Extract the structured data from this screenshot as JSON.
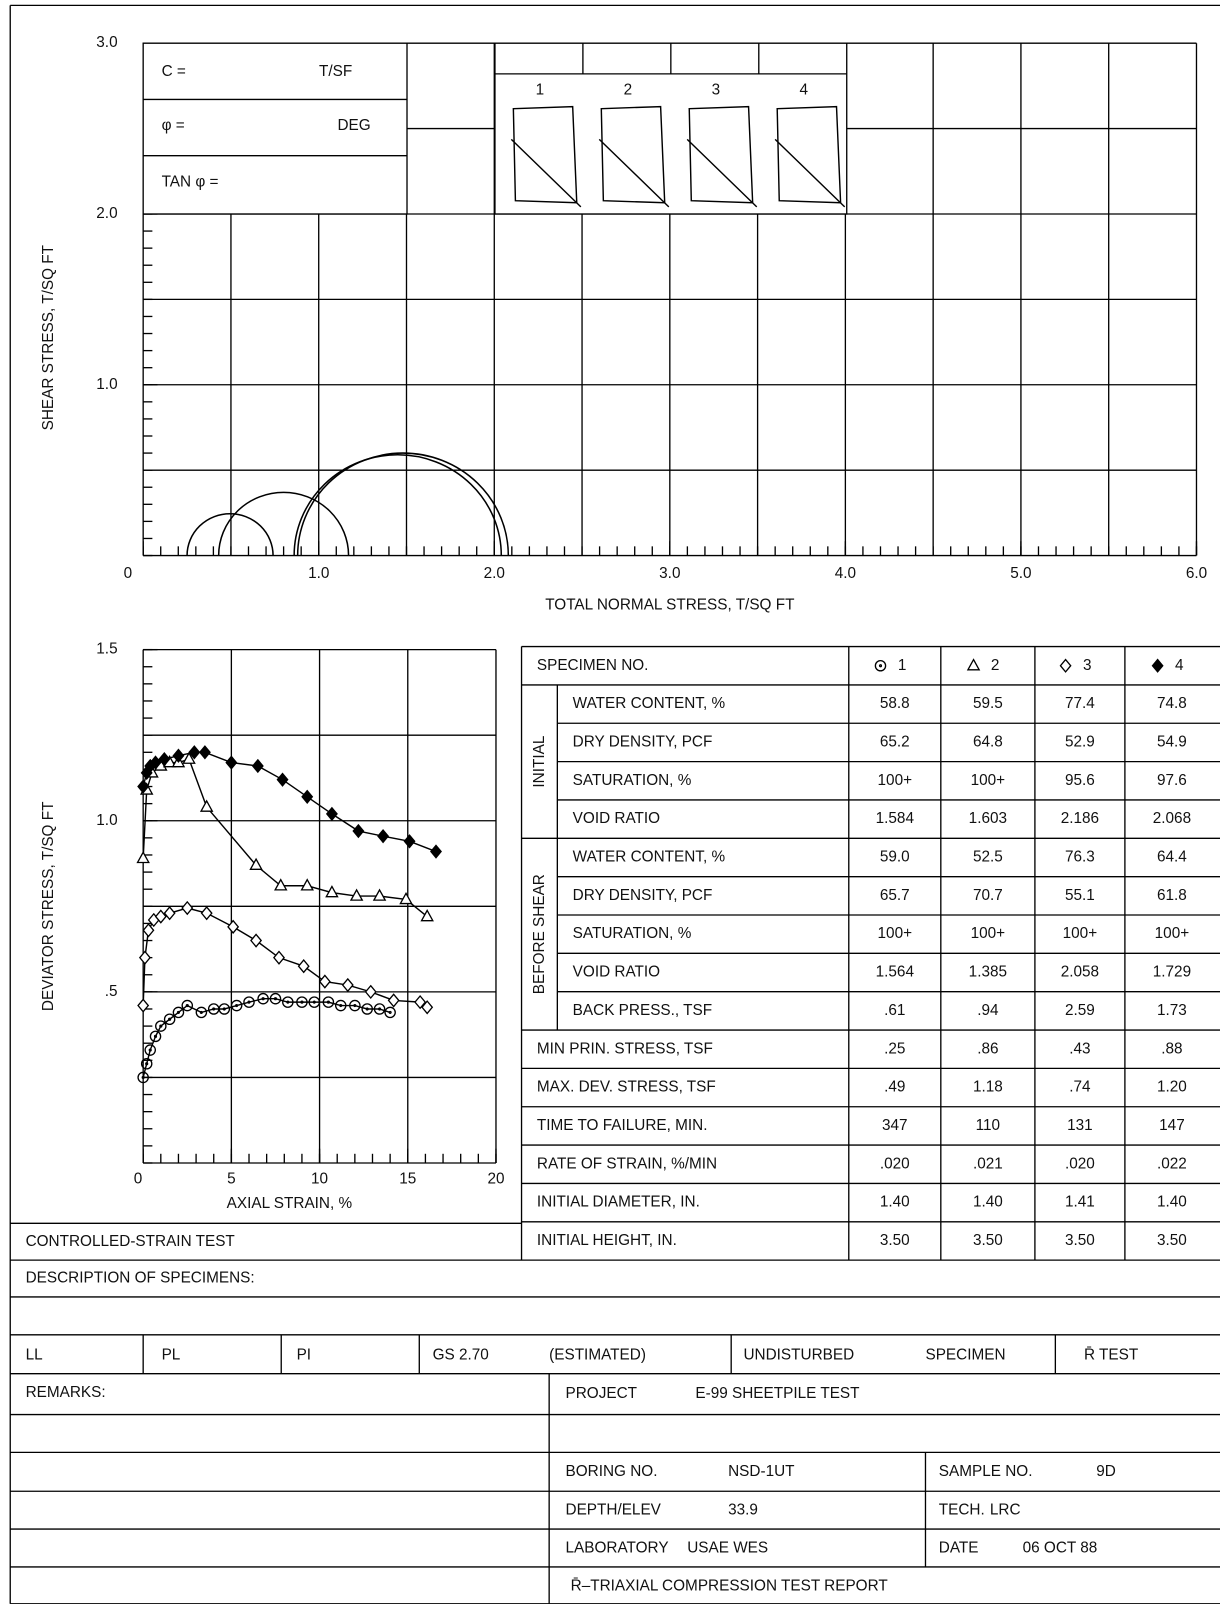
{
  "mohr_chart": {
    "strength_box": {
      "c": "C =",
      "c_unit": "T/SF",
      "phi": "φ =",
      "phi_unit": "DEG",
      "tan_phi": "TAN φ ="
    },
    "sketch_labels": [
      "1",
      "2",
      "3",
      "4"
    ],
    "x_label": "TOTAL NORMAL STRESS, T/SQ FT",
    "y_label": "SHEAR STRESS, T/SQ FT",
    "xlim": [
      0,
      6
    ],
    "ylim": [
      0,
      3
    ],
    "xticks": [
      0,
      {
        "value": 1,
        "label": "1.0"
      },
      {
        "value": 2,
        "label": "2.0"
      },
      {
        "value": 3,
        "label": "3.0"
      },
      {
        "value": 4,
        "label": "4.0"
      },
      {
        "value": 5,
        "label": "5.0"
      },
      {
        "value": 6,
        "label": "6.0"
      }
    ],
    "yticks": [
      {
        "value": 1,
        "label": "1.0"
      },
      {
        "value": 2,
        "label": "2.0"
      },
      {
        "value": 3,
        "label": "3.0"
      }
    ],
    "grid_step": 0.5,
    "minor_step": 0.1
  },
  "strain_chart": {
    "type": "line",
    "x_label": "AXIAL STRAIN, %",
    "y_label": "DEVIATOR STRESS, T/SQ FT",
    "xlim": [
      0,
      20
    ],
    "ylim": [
      0,
      1.5
    ],
    "xticks": [
      0,
      5,
      10,
      15,
      20
    ],
    "yticks": [
      {
        "value": 0.5,
        "label": ".5"
      },
      {
        "value": 1,
        "label": "1.0"
      },
      {
        "value": 1.5,
        "label": "1.5"
      }
    ],
    "grid_step_x": 5,
    "grid_step_y": 0.25,
    "minor_step_x": 1,
    "minor_step_y": 0.05,
    "series": [
      {
        "marker": "circle-dot",
        "color": "#000000",
        "x": [
          0,
          0.2,
          0.4,
          0.7,
          1,
          1.5,
          2,
          2.5,
          3.3,
          4,
          4.6,
          5.3,
          6,
          6.8,
          7.5,
          8.2,
          9,
          9.7,
          10.5,
          11.2,
          12,
          12.7,
          13.4,
          14
        ],
        "values": [
          0.25,
          0.29,
          0.33,
          0.37,
          0.4,
          0.42,
          0.44,
          0.46,
          0.44,
          0.45,
          0.45,
          0.46,
          0.47,
          0.48,
          0.48,
          0.47,
          0.47,
          0.47,
          0.47,
          0.46,
          0.46,
          0.45,
          0.45,
          0.44
        ]
      },
      {
        "marker": "triangle",
        "color": "#000000",
        "x": [
          0,
          0.2,
          0.5,
          1,
          1.5,
          2,
          2.6,
          3.6,
          6.4,
          7.8,
          9.3,
          10.7,
          12.1,
          13.4,
          14.9,
          16.1
        ],
        "values": [
          0.89,
          1.09,
          1.14,
          1.16,
          1.17,
          1.17,
          1.18,
          1.04,
          0.87,
          0.81,
          0.81,
          0.79,
          0.78,
          0.78,
          0.77,
          0.72
        ]
      },
      {
        "marker": "diamond",
        "color": "#000000",
        "x": [
          0,
          0.1,
          0.3,
          0.6,
          1,
          1.5,
          2.5,
          3.6,
          5.1,
          6.4,
          7.7,
          9.1,
          10.3,
          11.6,
          12.9,
          14.2,
          15.7,
          16.1
        ],
        "values": [
          0.46,
          0.6,
          0.68,
          0.71,
          0.72,
          0.73,
          0.745,
          0.73,
          0.69,
          0.65,
          0.6,
          0.575,
          0.53,
          0.52,
          0.5,
          0.475,
          0.47,
          0.455
        ]
      },
      {
        "marker": "diamond-filled",
        "color": "#000000",
        "x": [
          0,
          0.2,
          0.4,
          0.7,
          1.2,
          2,
          2.9,
          3.5,
          5,
          6.5,
          7.9,
          9.3,
          10.7,
          12.2,
          13.6,
          15.1,
          16.6
        ],
        "values": [
          1.1,
          1.14,
          1.16,
          1.17,
          1.18,
          1.19,
          1.2,
          1.2,
          1.17,
          1.16,
          1.12,
          1.07,
          1.02,
          0.97,
          0.955,
          0.94,
          0.91
        ]
      }
    ]
  },
  "table": {
    "header": {
      "label": "SPECIMEN NO.",
      "specimens": [
        "1",
        "2",
        "3",
        "4"
      ]
    },
    "sections": [
      {
        "group": "INITIAL",
        "rows": [
          {
            "label": "WATER CONTENT, %",
            "values": [
              "58.8",
              "59.5",
              "77.4",
              "74.8"
            ]
          },
          {
            "label": "DRY DENSITY, PCF",
            "values": [
              "65.2",
              "64.8",
              "52.9",
              "54.9"
            ]
          },
          {
            "label": "SATURATION, %",
            "values": [
              "100+",
              "100+",
              "95.6",
              "97.6"
            ]
          },
          {
            "label": "VOID RATIO",
            "values": [
              "1.584",
              "1.603",
              "2.186",
              "2.068"
            ]
          }
        ]
      },
      {
        "group": "BEFORE SHEAR",
        "rows": [
          {
            "label": "WATER CONTENT, %",
            "values": [
              "59.0",
              "52.5",
              "76.3",
              "64.4"
            ]
          },
          {
            "label": "DRY DENSITY, PCF",
            "values": [
              "65.7",
              "70.7",
              "55.1",
              "61.8"
            ]
          },
          {
            "label": "SATURATION, %",
            "values": [
              "100+",
              "100+",
              "100+",
              "100+"
            ]
          },
          {
            "label": "VOID RATIO",
            "values": [
              "1.564",
              "1.385",
              "2.058",
              "1.729"
            ]
          },
          {
            "label": "BACK PRESS., TSF",
            "values": [
              ".61",
              ".94",
              "2.59",
              "1.73"
            ]
          }
        ]
      },
      {
        "rows": [
          {
            "label": "MIN PRIN. STRESS, TSF",
            "values": [
              ".25",
              ".86",
              ".43",
              ".88"
            ]
          },
          {
            "label": "MAX. DEV. STRESS, TSF",
            "values": [
              ".49",
              "1.18",
              ".74",
              "1.20"
            ]
          },
          {
            "label": "TIME TO FAILURE, MIN.",
            "values": [
              "347",
              "110",
              "131",
              "147"
            ]
          },
          {
            "label": "RATE OF STRAIN, %/MIN",
            "values": [
              ".020",
              ".021",
              ".020",
              ".022"
            ]
          },
          {
            "label": "INITIAL DIAMETER, IN.",
            "values": [
              "1.40",
              "1.40",
              "1.41",
              "1.40"
            ]
          },
          {
            "label": "INITIAL HEIGHT, IN.",
            "values": [
              "3.50",
              "3.50",
              "3.50",
              "3.50"
            ]
          }
        ]
      }
    ]
  },
  "footer": {
    "test_type": "CONTROLLED-STRAIN TEST",
    "description_label": "DESCRIPTION OF SPECIMENS:",
    "classification": {
      "ll": "LL",
      "pl": "PL",
      "pi": "PI",
      "gs": "GS  2.70",
      "gs_note": "(ESTIMATED)",
      "condition": "UNDISTURBED",
      "condition_2": "SPECIMEN",
      "test": "R̄ TEST"
    },
    "remarks_label": "REMARKS:",
    "project": {
      "label": "PROJECT",
      "value": "E-99 SHEETPILE TEST"
    },
    "boring": {
      "label": "BORING NO.",
      "value": "NSD-1UT"
    },
    "sample": {
      "label": "SAMPLE NO.",
      "value": "9D"
    },
    "depth": {
      "label": "DEPTH/ELEV",
      "value": "33.9"
    },
    "tech": {
      "label": "TECH.",
      "value": "LRC"
    },
    "laboratory": {
      "label": "LABORATORY",
      "value": "USAE WES"
    },
    "date": {
      "label": "DATE",
      "value": "06 OCT 88"
    },
    "report_title": "R̄–TRIAXIAL COMPRESSION TEST REPORT"
  }
}
